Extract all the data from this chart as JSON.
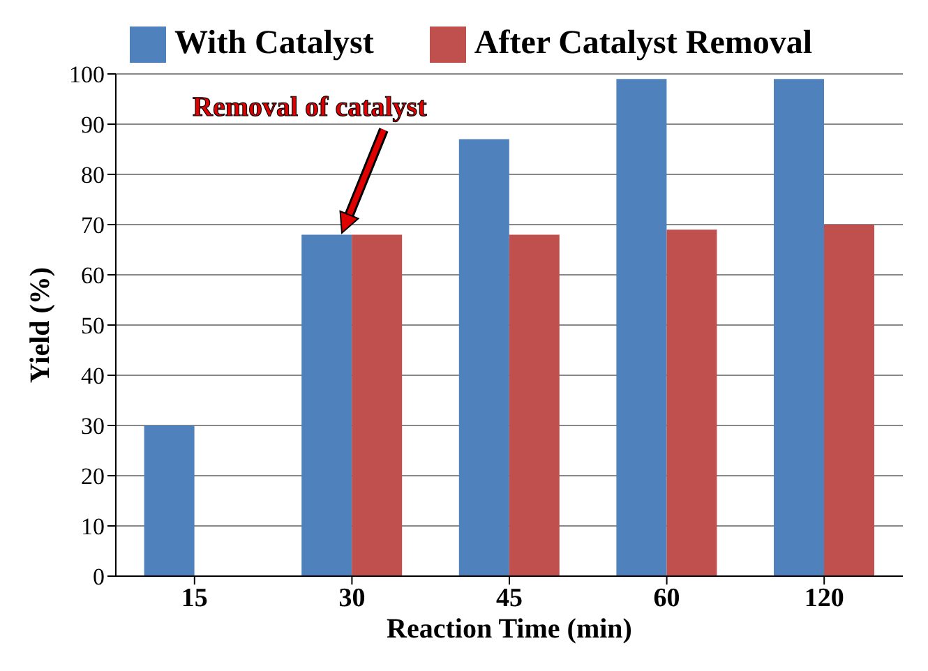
{
  "chart_data": {
    "type": "bar",
    "xlabel": "Reaction Time (min)",
    "ylabel": "Yield (%)",
    "categories": [
      "15",
      "30",
      "45",
      "60",
      "120"
    ],
    "series": [
      {
        "name": "With Catalyst",
        "color": "#4f81bd",
        "values": [
          30,
          68,
          87,
          99,
          99
        ]
      },
      {
        "name": "After Catalyst Removal",
        "color": "#c0504d",
        "values": [
          null,
          68,
          68,
          69,
          70
        ]
      }
    ],
    "ylim": [
      0,
      100
    ],
    "yticks": [
      0,
      10,
      20,
      30,
      40,
      50,
      60,
      70,
      80,
      90,
      100
    ],
    "grid": "y",
    "legend": "top",
    "annotations": [
      "Removal of catalyst"
    ]
  }
}
